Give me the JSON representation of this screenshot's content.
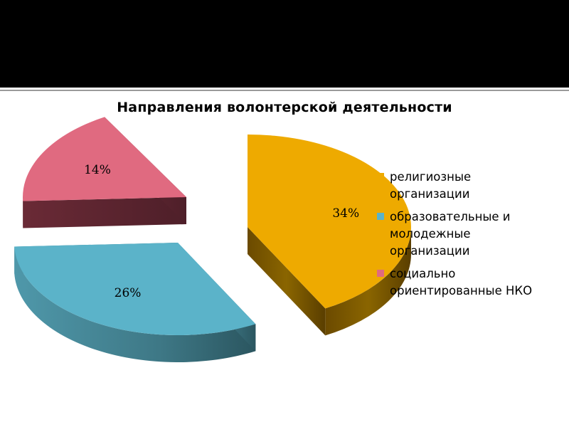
{
  "chart_data": {
    "type": "pie",
    "title": "Направления волонтерской деятельности",
    "categories": [
      "религиозные организации",
      "образовательные и молодежные организации",
      "социально ориентированные НКО"
    ],
    "values": [
      34,
      26,
      14
    ],
    "labels": [
      "34%",
      "26%",
      "14%"
    ],
    "colors": [
      "#EEAA00",
      "#5BB3C9",
      "#E06A80"
    ],
    "legend": "right",
    "style": "3d-exploded"
  }
}
